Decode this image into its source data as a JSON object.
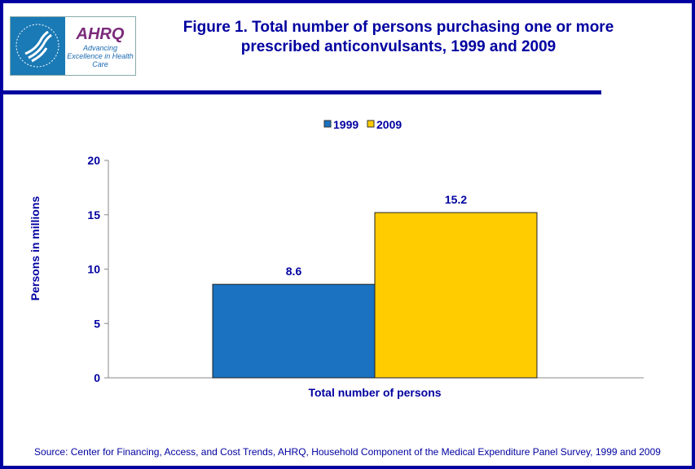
{
  "title": "Figure 1. Total number of persons purchasing one or more prescribed anticonvulsants, 1999 and 2009",
  "logo": {
    "brand": "AHRQ",
    "tagline": "Advancing Excellence in Health Care",
    "seal": "Department of Health & Human Services USA"
  },
  "source": "Source: Center for Financing, Access, and Cost Trends, AHRQ, Household Component of the Medical Expenditure Panel Survey,  1999 and 2009",
  "colors": {
    "text": "#0000a0",
    "1999": "#1a72c0",
    "2009": "#ffcc00"
  },
  "chart_data": {
    "type": "bar",
    "categories": [
      "Total number of persons"
    ],
    "series": [
      {
        "name": "1999",
        "values": [
          8.6
        ]
      },
      {
        "name": "2009",
        "values": [
          15.2
        ]
      }
    ],
    "ylabel": "Persons in millions",
    "xlabel": "",
    "ylim": [
      0,
      20
    ],
    "yticks": [
      0,
      5,
      10,
      15,
      20
    ],
    "grid": false,
    "legend": "top"
  }
}
